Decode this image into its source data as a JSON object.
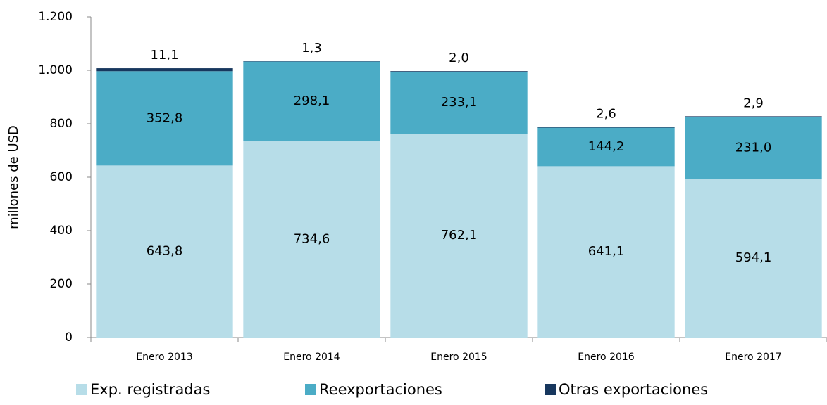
{
  "chart_data": {
    "type": "bar",
    "stacked": true,
    "y_label": "millones de  USD",
    "categories": [
      "Enero 2013",
      "Enero 2014",
      "Enero 2015",
      "Enero 2016",
      "Enero 2017"
    ],
    "series": [
      {
        "name": "Exp. registradas",
        "color": "#b7dde8",
        "values": [
          643.8,
          734.6,
          762.1,
          641.1,
          594.1
        ],
        "value_labels": [
          "643,8",
          "734,6",
          "762,1",
          "641,1",
          "594,1"
        ]
      },
      {
        "name": "Reexportaciones",
        "color": "#4bacc6",
        "values": [
          352.8,
          298.1,
          233.1,
          144.2,
          231.0
        ],
        "value_labels": [
          "352,8",
          "298,1",
          "233,1",
          "144,2",
          "231,0"
        ]
      },
      {
        "name": "Otras exportaciones",
        "color": "#17375e",
        "values": [
          11.1,
          1.3,
          2.0,
          2.6,
          2.9
        ],
        "value_labels": [
          "11,1",
          "1,3",
          "2,0",
          "2,6",
          "2,9"
        ]
      }
    ],
    "ylim": [
      0,
      1200
    ],
    "yticks": [
      0,
      200,
      400,
      600,
      800,
      {
        "value": 1000,
        "label": "1.000"
      },
      {
        "value": 1200,
        "label": "1.200"
      }
    ],
    "grid": false,
    "legend": "bottom"
  }
}
